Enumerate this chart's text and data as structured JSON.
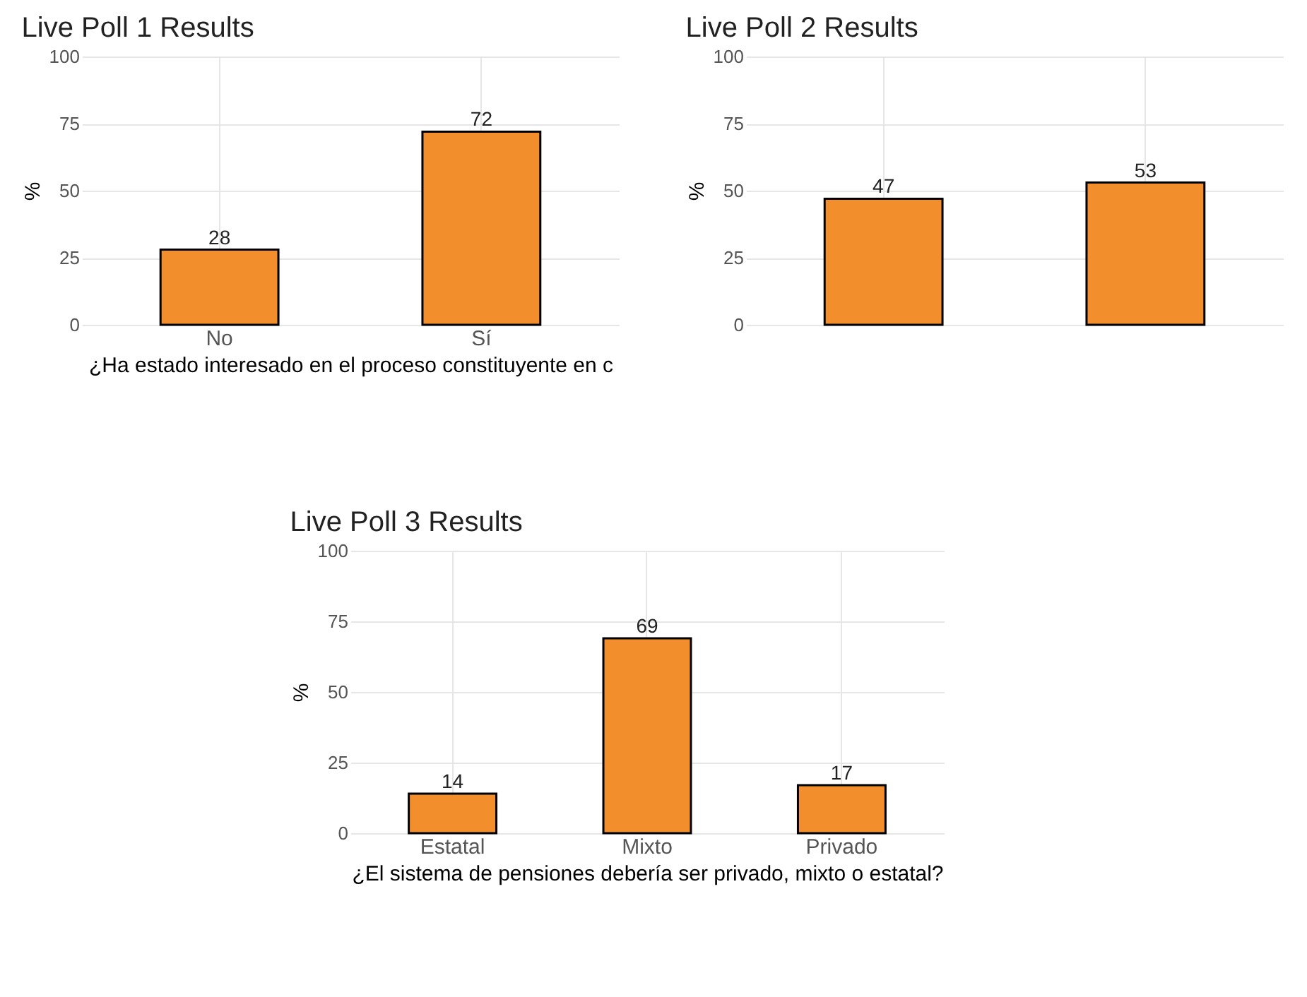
{
  "chart_data": [
    {
      "type": "bar",
      "title": "Live Poll 1 Results",
      "xlabel": "¿Ha estado interesado en el proceso constituyente en c",
      "ylabel": "%",
      "categories": [
        "No",
        "Sí"
      ],
      "values": [
        28,
        72
      ],
      "color": "#f28e2b",
      "ylim": [
        0,
        100
      ],
      "yticks": [
        0,
        25,
        50,
        75,
        100
      ],
      "grid": true,
      "data_labels": true
    },
    {
      "type": "bar",
      "title": "Live Poll 2 Results",
      "ylabel": "%",
      "categories": [
        null,
        null
      ],
      "values": [
        47,
        53
      ],
      "color": "#f28e2b",
      "ylim": [
        0,
        100
      ],
      "yticks": [
        0,
        25,
        50,
        75,
        100
      ],
      "grid": true,
      "data_labels": true
    },
    {
      "type": "bar",
      "title": "Live Poll 3 Results",
      "xlabel": "¿El sistema de pensiones debería ser privado, mixto o estatal?",
      "ylabel": "%",
      "categories": [
        "Estatal",
        "Mixto",
        "Privado"
      ],
      "values": [
        14,
        69,
        17
      ],
      "color": "#f28e2b",
      "ylim": [
        0,
        100
      ],
      "yticks": [
        0,
        25,
        50,
        75,
        100
      ],
      "grid": true,
      "data_labels": true
    }
  ]
}
